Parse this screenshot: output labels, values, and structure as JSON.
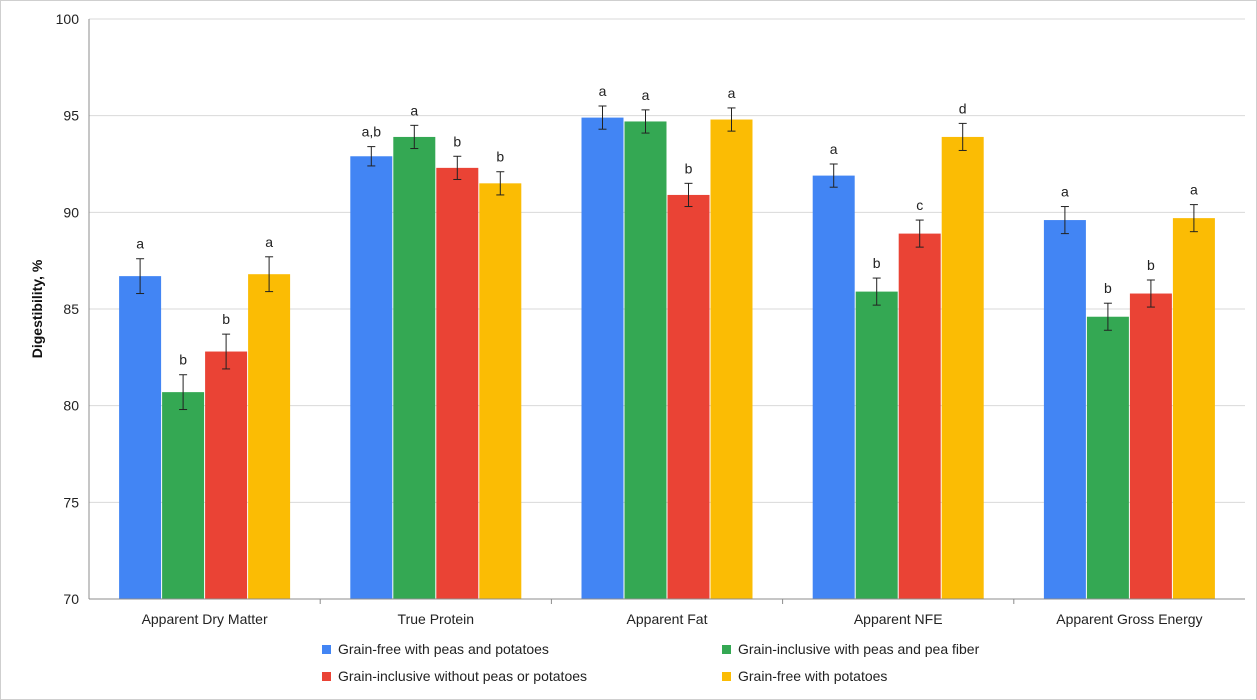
{
  "chart_data": {
    "type": "bar",
    "title": "",
    "xlabel": "",
    "ylabel": "Digestibility, %",
    "ylim": [
      70,
      100
    ],
    "yticks": [
      70,
      75,
      80,
      85,
      90,
      95,
      100
    ],
    "grid": "horizontal",
    "legend_position": "bottom",
    "categories": [
      "Apparent Dry Matter",
      "True Protein",
      "Apparent Fat",
      "Apparent NFE",
      "Apparent Gross Energy"
    ],
    "series": [
      {
        "name": "Grain-free with peas and potatoes",
        "color": "#4285f4",
        "values": [
          86.7,
          92.9,
          94.9,
          91.9,
          89.6
        ],
        "errors": [
          0.9,
          0.5,
          0.6,
          0.6,
          0.7
        ],
        "labels": [
          "a",
          "a,b",
          "a",
          "a",
          "a"
        ]
      },
      {
        "name": "Grain-inclusive with peas and pea fiber",
        "color": "#34a853",
        "values": [
          80.7,
          93.9,
          94.7,
          85.9,
          84.6
        ],
        "errors": [
          0.9,
          0.6,
          0.6,
          0.7,
          0.7
        ],
        "labels": [
          "b",
          "a",
          "a",
          "b",
          "b"
        ]
      },
      {
        "name": "Grain-inclusive without peas or potatoes",
        "color": "#ea4335",
        "values": [
          82.8,
          92.3,
          90.9,
          88.9,
          85.8
        ],
        "errors": [
          0.9,
          0.6,
          0.6,
          0.7,
          0.7
        ],
        "labels": [
          "b",
          "b",
          "b",
          "c",
          "b"
        ]
      },
      {
        "name": "Grain-free with potatoes",
        "color": "#fbbc04",
        "values": [
          86.8,
          91.5,
          94.8,
          93.9,
          89.7
        ],
        "errors": [
          0.9,
          0.6,
          0.6,
          0.7,
          0.7
        ],
        "labels": [
          "a",
          "b",
          "a",
          "d",
          "a"
        ]
      }
    ]
  }
}
